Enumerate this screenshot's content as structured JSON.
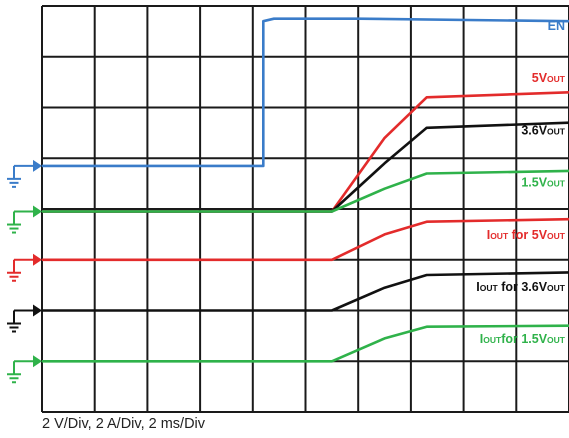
{
  "footer": "2 V/Div, 2 A/Div, 2 ms/Div",
  "chart_data": {
    "type": "line",
    "title": "",
    "grid": true,
    "x_divisions": 10,
    "y_divisions": 8,
    "x_units": "ms",
    "x_per_div": 2,
    "series": [
      {
        "name": "EN",
        "label_parts": [
          {
            "text": "EN",
            "sub": false
          }
        ],
        "color": "#3a7cc9",
        "ground_div": 4.85,
        "ground_color": "#3a7cc9",
        "points": [
          [
            0,
            4.85
          ],
          [
            4.2,
            4.85
          ],
          [
            4.2,
            7.7
          ],
          [
            4.4,
            7.75
          ],
          [
            6,
            7.75
          ],
          [
            10,
            7.7
          ]
        ]
      },
      {
        "name": "5VOUT",
        "label_parts": [
          {
            "text": "5V",
            "sub": false
          },
          {
            "text": "OUT",
            "sub": true
          }
        ],
        "color": "#e32b2b",
        "points": [
          [
            0,
            3.95
          ],
          [
            5.5,
            3.95
          ],
          [
            6.5,
            5.4
          ],
          [
            7.3,
            6.2
          ],
          [
            10,
            6.3
          ]
        ]
      },
      {
        "name": "3.6VOUT",
        "label_parts": [
          {
            "text": "3.6V",
            "sub": false
          },
          {
            "text": "OUT",
            "sub": true
          }
        ],
        "color": "#111111",
        "points": [
          [
            0,
            3.95
          ],
          [
            5.5,
            3.95
          ],
          [
            6.5,
            4.9
          ],
          [
            7.3,
            5.6
          ],
          [
            10,
            5.7
          ]
        ]
      },
      {
        "name": "1.5VOUT",
        "label_parts": [
          {
            "text": "1.5V",
            "sub": false
          },
          {
            "text": "OUT",
            "sub": true
          }
        ],
        "color": "#2fb24a",
        "ground_div": 3.95,
        "ground_color": "#2fb24a",
        "points": [
          [
            0,
            3.95
          ],
          [
            5.5,
            3.95
          ],
          [
            6.5,
            4.4
          ],
          [
            7.3,
            4.7
          ],
          [
            10,
            4.75
          ]
        ]
      },
      {
        "name": "IOUT for 5VOUT",
        "label_parts": [
          {
            "text": "I",
            "sub": false
          },
          {
            "text": "OUT",
            "sub": true
          },
          {
            "text": " for 5V",
            "sub": false
          },
          {
            "text": "OUT",
            "sub": true
          }
        ],
        "color": "#e32b2b",
        "ground_div": 3.0,
        "ground_color": "#e32b2b",
        "points": [
          [
            0,
            3.0
          ],
          [
            5.5,
            3.0
          ],
          [
            6.5,
            3.5
          ],
          [
            7.3,
            3.75
          ],
          [
            10,
            3.8
          ]
        ]
      },
      {
        "name": "IOUT for 3.6VOUT",
        "label_parts": [
          {
            "text": "I",
            "sub": false
          },
          {
            "text": "OUT",
            "sub": true
          },
          {
            "text": " for 3.6V",
            "sub": false
          },
          {
            "text": "OUT",
            "sub": true
          }
        ],
        "color": "#111111",
        "ground_div": 2.0,
        "ground_color": "#111111",
        "points": [
          [
            0,
            2.0
          ],
          [
            5.5,
            2.0
          ],
          [
            6.5,
            2.45
          ],
          [
            7.3,
            2.7
          ],
          [
            10,
            2.75
          ]
        ]
      },
      {
        "name": "IOUT for 1.5VOUT",
        "label_parts": [
          {
            "text": "I",
            "sub": false
          },
          {
            "text": "OUT",
            "sub": true
          },
          {
            "text": "for 1.5V",
            "sub": false
          },
          {
            "text": "OUT",
            "sub": true
          }
        ],
        "color": "#2fb24a",
        "ground_div": 1.0,
        "ground_color": "#2fb24a",
        "points": [
          [
            0,
            1.0
          ],
          [
            5.5,
            1.0
          ],
          [
            6.5,
            1.45
          ],
          [
            7.3,
            1.68
          ],
          [
            10,
            1.7
          ]
        ]
      }
    ]
  }
}
